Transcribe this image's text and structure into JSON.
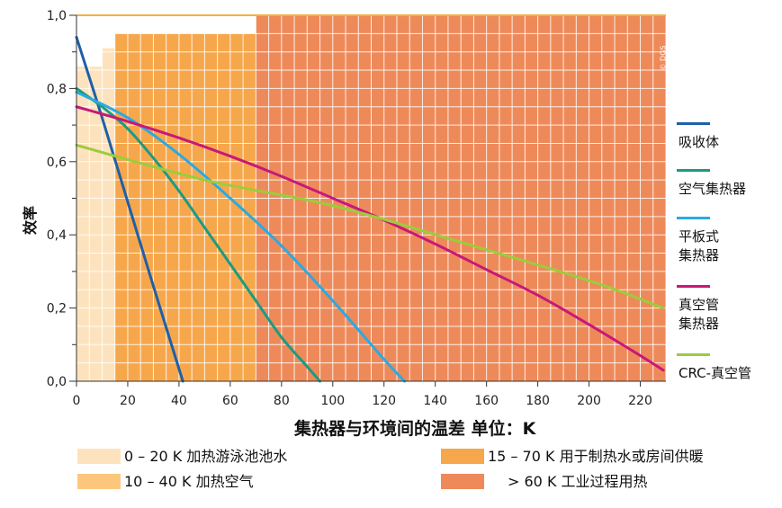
{
  "chart_data": {
    "type": "line",
    "xlabel": "集热器与环境间的温差 单位：K",
    "ylabel": "效率",
    "xlim": [
      0,
      230
    ],
    "ylim": [
      0,
      1.0
    ],
    "x_ticks": [
      "0",
      "20",
      "40",
      "60",
      "80",
      "100",
      "120",
      "140",
      "160",
      "180",
      "200",
      "220"
    ],
    "y_ticks": [
      "0,0",
      "0,2",
      "0,4",
      "0,6",
      "0,8",
      "1,0"
    ],
    "grid": true,
    "legend_position": "right",
    "series": [
      {
        "name": "吸收体",
        "color": "#1f5fa8",
        "x": [
          0,
          10,
          20,
          30,
          41.5
        ],
        "y": [
          0.94,
          0.72,
          0.49,
          0.26,
          0.0
        ]
      },
      {
        "name": "空气集热器",
        "color": "#1e9a80",
        "x": [
          0,
          10,
          20,
          30,
          40,
          50,
          60,
          70,
          80,
          90,
          95
        ],
        "y": [
          0.8,
          0.75,
          0.69,
          0.61,
          0.52,
          0.42,
          0.32,
          0.22,
          0.12,
          0.04,
          0.0
        ]
      },
      {
        "name": "平板式\n集热器",
        "color": "#2aaae2",
        "x": [
          0,
          20,
          40,
          60,
          80,
          100,
          120,
          128
        ],
        "y": [
          0.79,
          0.72,
          0.62,
          0.5,
          0.37,
          0.22,
          0.06,
          0.0
        ]
      },
      {
        "name": "真空管\n集热器",
        "color": "#c8187a",
        "x": [
          0,
          20,
          40,
          60,
          80,
          100,
          120,
          140,
          160,
          180,
          200,
          220,
          229
        ],
        "y": [
          0.75,
          0.71,
          0.665,
          0.615,
          0.56,
          0.5,
          0.44,
          0.375,
          0.305,
          0.235,
          0.155,
          0.07,
          0.03
        ]
      },
      {
        "name": "CRC-真空管",
        "color": "#9ccc3c",
        "x": [
          0,
          50,
          100,
          150,
          200,
          229
        ],
        "y": [
          0.645,
          0.55,
          0.48,
          0.38,
          0.275,
          0.2
        ]
      }
    ],
    "zones": [
      {
        "range": "0 – 20 K",
        "label": "加热游泳池池水",
        "color": "#fde3bd",
        "x0": 0,
        "x1": 20,
        "top": 0.86,
        "steps": [
          {
            "x0": 0,
            "x1": 10,
            "top": 0.86
          },
          {
            "x0": 10,
            "x1": 20,
            "top": 0.91
          }
        ]
      },
      {
        "range": "10 – 40 K",
        "label": "加热空气",
        "color": "#fcc77c",
        "x0": 20,
        "x1": 40,
        "top": 0.91,
        "steps": [
          {
            "x0": 20,
            "x1": 40,
            "top": 0.91
          }
        ]
      },
      {
        "range": "15 – 70 K",
        "label": "用于制热水或房间供暖",
        "color": "#f7a74b",
        "x0": 40,
        "x1": 70,
        "top": 0.95,
        "steps": [
          {
            "x0": 15,
            "x1": 40,
            "top": 0.95
          },
          {
            "x0": 40,
            "x1": 60,
            "top": 0.95
          },
          {
            "x0": 60,
            "x1": 70,
            "top": 0.95
          }
        ]
      },
      {
        "range": "> 60 K",
        "label": "工业过程用热",
        "color": "#ee8a5a",
        "x0": 70,
        "x1": 230,
        "top": 1.0,
        "steps": [
          {
            "x0": 70,
            "x1": 230,
            "top": 1.0
          }
        ]
      }
    ],
    "credit": "© DGS"
  }
}
